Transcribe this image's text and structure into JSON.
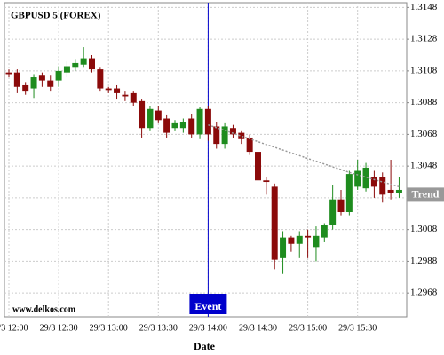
{
  "chart_data": {
    "type": "candlestick",
    "title": "GBPUSD 5 (FOREX)",
    "x_label": "Date",
    "watermark": "www.delkos.com",
    "categories": [
      "29/3 12:00",
      null,
      null,
      null,
      null,
      null,
      "29/3 12:30",
      null,
      null,
      null,
      null,
      null,
      "29/3 13:00",
      null,
      null,
      null,
      null,
      null,
      "29/3 13:30",
      null,
      null,
      null,
      null,
      null,
      "29/3 14:00",
      null,
      null,
      null,
      null,
      null,
      "29/3 14:30",
      null,
      null,
      null,
      null,
      null,
      "29/3 15:00",
      null,
      null,
      null,
      null,
      null,
      "29/3 15:30",
      null,
      null,
      null,
      null,
      null
    ],
    "open": [
      1.3107,
      1.3107,
      1.3099,
      1.3097,
      1.3105,
      1.3102,
      1.3102,
      1.3107,
      1.311,
      1.3112,
      1.3116,
      1.3109,
      1.3097,
      1.3097,
      1.3093,
      1.3094,
      1.3089,
      1.3072,
      1.3083,
      1.3078,
      1.3072,
      1.3072,
      1.3078,
      1.3068,
      1.3084,
      1.3073,
      1.3062,
      1.3072,
      1.3069,
      1.3066,
      1.3057,
      1.3039,
      1.3035,
      1.299,
      1.3003,
      1.2999,
      1.3004,
      1.2997,
      1.3003,
      1.3011,
      1.3027,
      1.3019,
      1.3035,
      1.3034,
      1.3041,
      1.3041,
      1.3033,
      1.3031
    ],
    "high": [
      1.3109,
      1.3109,
      1.3101,
      1.3106,
      1.3107,
      1.3105,
      1.3111,
      1.3114,
      1.3115,
      1.3123,
      1.3118,
      1.311,
      1.3098,
      1.3099,
      1.3095,
      1.3095,
      1.309,
      1.3086,
      1.3086,
      1.308,
      1.3077,
      1.3078,
      1.3081,
      1.3085,
      1.3086,
      1.3076,
      1.3075,
      1.3074,
      1.307,
      1.3068,
      1.3059,
      1.3041,
      1.3037,
      1.3007,
      1.3004,
      1.3007,
      1.3008,
      1.301,
      1.3012,
      1.3036,
      1.3033,
      1.3045,
      1.3052,
      1.305,
      1.3045,
      1.3044,
      1.3052,
      1.3041
    ],
    "low": [
      1.3104,
      1.3094,
      1.3093,
      1.3091,
      1.3098,
      1.3095,
      1.3098,
      1.3104,
      1.3108,
      1.311,
      1.3107,
      1.3095,
      1.3094,
      1.309,
      1.3089,
      1.3086,
      1.3066,
      1.307,
      1.3075,
      1.3066,
      1.307,
      1.3069,
      1.3066,
      1.3065,
      1.3064,
      1.3059,
      1.3059,
      1.3066,
      1.3062,
      1.3055,
      1.3033,
      1.303,
      1.2983,
      1.298,
      1.2994,
      1.299,
      1.299,
      1.2988,
      1.3,
      1.3008,
      1.3017,
      1.3017,
      1.3033,
      1.3032,
      1.3028,
      1.3025,
      1.3027,
      1.3028
    ],
    "close": [
      1.3106,
      1.3098,
      1.3095,
      1.3104,
      1.3102,
      1.3098,
      1.3108,
      1.3111,
      1.3113,
      1.3116,
      1.3109,
      1.3097,
      1.3096,
      1.3094,
      1.3092,
      1.3088,
      1.3072,
      1.3084,
      1.3077,
      1.3069,
      1.3075,
      1.3076,
      1.3068,
      1.3084,
      1.3068,
      1.3062,
      1.3073,
      1.3068,
      1.3065,
      1.3057,
      1.3039,
      1.3038,
      1.2989,
      1.3003,
      1.2999,
      1.3004,
      1.3003,
      1.3004,
      1.3011,
      1.3027,
      1.3019,
      1.3043,
      1.3045,
      1.3047,
      1.3035,
      1.303,
      1.3031,
      1.3033
    ],
    "up_color": "#1e8c1e",
    "down_color": "#8b0a0a",
    "trend": {
      "label": "Trend",
      "color": "#999999",
      "values": [
        null,
        null,
        null,
        null,
        null,
        null,
        null,
        null,
        null,
        null,
        null,
        null,
        null,
        null,
        null,
        null,
        null,
        null,
        null,
        null,
        null,
        null,
        null,
        null,
        1.3074,
        1.30722,
        1.30705,
        1.30687,
        1.30669,
        1.30652,
        1.30634,
        1.30616,
        1.30599,
        1.30581,
        1.30564,
        1.30546,
        1.30528,
        1.30511,
        1.30493,
        1.30475,
        1.30458,
        1.3044,
        1.30425,
        1.3041,
        1.30395,
        1.3038,
        1.30365,
        1.3035
      ]
    },
    "event": {
      "label": "Event",
      "at": "29/3 14:00",
      "color": "#0000cc"
    },
    "ylim": [
      1.2953,
      1.3151
    ],
    "yticks": [
      1.3148,
      1.3128,
      1.3108,
      1.3088,
      1.3068,
      1.3048,
      1.3028,
      1.3008,
      1.2988,
      1.2968
    ],
    "grid": true
  }
}
